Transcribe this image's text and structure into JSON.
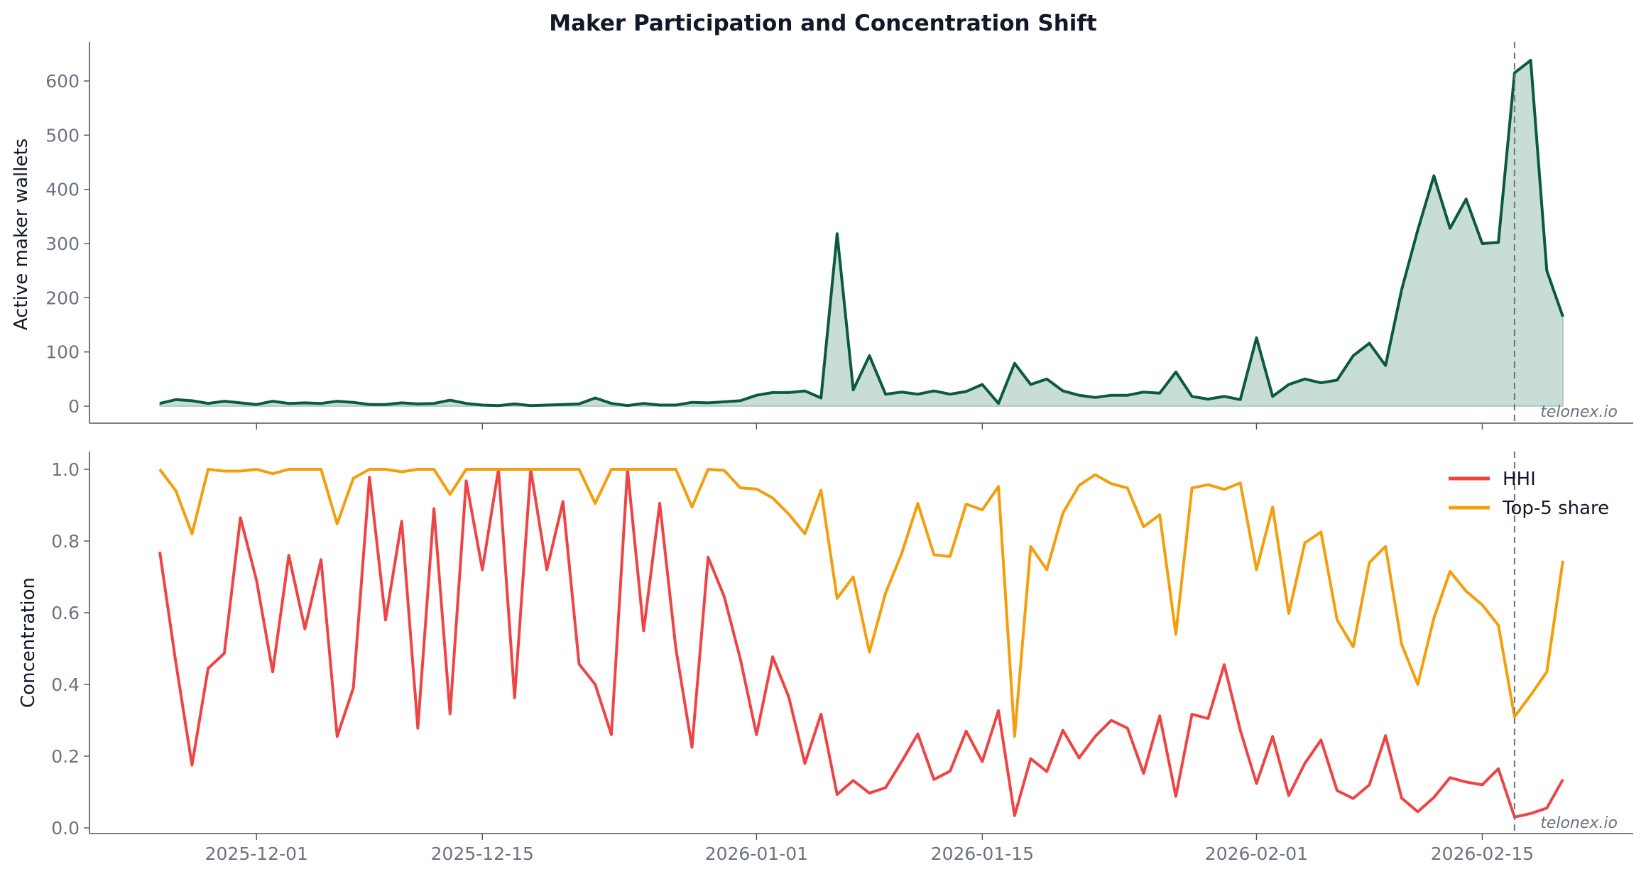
{
  "chart_data": [
    {
      "type": "area",
      "title": "Maker Participation and Concentration Shift",
      "ylabel": "Active maker wallets",
      "xlabel": "",
      "ylim": [
        -30,
        670
      ],
      "yticks": [
        0,
        100,
        200,
        300,
        400,
        500,
        600
      ],
      "marker_date": "2026-02-17",
      "watermark": "telonex.io",
      "colors": {
        "line": "#0b5a3f",
        "fill": "#c8ddd5"
      },
      "series": [
        {
          "values": [
            5,
            12,
            10,
            5,
            9,
            6,
            3,
            9,
            5,
            6,
            5,
            9,
            7,
            3,
            3,
            6,
            4,
            5,
            11,
            5,
            2,
            1,
            4,
            1,
            2,
            3,
            4,
            15,
            5,
            1,
            5,
            2,
            2,
            7,
            6,
            8,
            10,
            20,
            25,
            25,
            28,
            15,
            318,
            30,
            93,
            22,
            26,
            22,
            28,
            22,
            27,
            40,
            5,
            79,
            40,
            50,
            28,
            20,
            16,
            20,
            20,
            26,
            24,
            63,
            18,
            13,
            18,
            12,
            126,
            18,
            40,
            50,
            43,
            48,
            93,
            116,
            75,
            215,
            325,
            425,
            328,
            382,
            300,
            302,
            615,
            638,
            250,
            165
          ]
        }
      ]
    },
    {
      "type": "line",
      "ylabel": "Concentration",
      "xlabel": "",
      "ylim": [
        -0.02,
        1.05
      ],
      "yticks": [
        "0.0",
        "0.2",
        "0.4",
        "0.6",
        "0.8",
        "1.0"
      ],
      "xticks": [
        "2025-12-01",
        "2025-12-15",
        "2026-01-01",
        "2026-01-15",
        "2026-02-01",
        "2026-02-15"
      ],
      "marker_date": "2026-02-17",
      "watermark": "telonex.io",
      "legend_position": "top-right",
      "series": [
        {
          "name": "HHI",
          "color": "#ef4444",
          "values": [
            0.77,
            0.46,
            0.175,
            0.445,
            0.487,
            0.865,
            0.69,
            0.435,
            0.76,
            0.555,
            0.748,
            0.255,
            0.39,
            0.978,
            0.58,
            0.855,
            0.278,
            0.89,
            0.318,
            0.968,
            0.72,
            1.0,
            0.363,
            1.0,
            0.72,
            0.91,
            0.457,
            0.4,
            0.26,
            1.0,
            0.55,
            0.905,
            0.5,
            0.225,
            0.755,
            0.645,
            0.47,
            0.26,
            0.477,
            0.365,
            0.18,
            0.317,
            0.093,
            0.132,
            0.097,
            0.112,
            0.185,
            0.262,
            0.135,
            0.158,
            0.27,
            0.185,
            0.327,
            0.034,
            0.193,
            0.157,
            0.272,
            0.195,
            0.255,
            0.3,
            0.278,
            0.152,
            0.312,
            0.088,
            0.317,
            0.305,
            0.455,
            0.272,
            0.124,
            0.255,
            0.09,
            0.18,
            0.245,
            0.104,
            0.082,
            0.12,
            0.257,
            0.083,
            0.045,
            0.085,
            0.14,
            0.128,
            0.12,
            0.165,
            0.03,
            0.04,
            0.055,
            0.135
          ]
        },
        {
          "name": "Top-5 share",
          "color": "#f59e0b",
          "values": [
            1.0,
            0.94,
            0.82,
            1.0,
            0.995,
            0.995,
            1.0,
            0.988,
            1.0,
            1.0,
            1.0,
            0.848,
            0.975,
            1.0,
            1.0,
            0.993,
            1.0,
            1.0,
            0.93,
            1.0,
            1.0,
            1.0,
            1.0,
            1.0,
            1.0,
            1.0,
            1.0,
            0.905,
            1.0,
            1.0,
            1.0,
            1.0,
            1.0,
            0.895,
            1.0,
            0.997,
            0.948,
            0.945,
            0.92,
            0.875,
            0.82,
            0.942,
            0.64,
            0.7,
            0.49,
            0.655,
            0.765,
            0.905,
            0.762,
            0.757,
            0.903,
            0.887,
            0.952,
            0.255,
            0.785,
            0.72,
            0.878,
            0.955,
            0.985,
            0.96,
            0.948,
            0.84,
            0.873,
            0.54,
            0.948,
            0.957,
            0.944,
            0.962,
            0.72,
            0.895,
            0.598,
            0.795,
            0.825,
            0.58,
            0.505,
            0.74,
            0.785,
            0.512,
            0.4,
            0.585,
            0.715,
            0.66,
            0.622,
            0.565,
            0.31,
            0.37,
            0.435,
            0.745
          ]
        }
      ]
    }
  ],
  "x_dates": [
    "2025-11-25",
    "2025-11-26",
    "2025-11-27",
    "2025-11-28",
    "2025-11-29",
    "2025-11-30",
    "2025-12-01",
    "2025-12-02",
    "2025-12-03",
    "2025-12-04",
    "2025-12-05",
    "2025-12-06",
    "2025-12-07",
    "2025-12-08",
    "2025-12-09",
    "2025-12-10",
    "2025-12-11",
    "2025-12-12",
    "2025-12-13",
    "2025-12-14",
    "2025-12-15",
    "2025-12-16",
    "2025-12-17",
    "2025-12-18",
    "2025-12-19",
    "2025-12-20",
    "2025-12-21",
    "2025-12-22",
    "2025-12-23",
    "2025-12-24",
    "2025-12-25",
    "2025-12-26",
    "2025-12-27",
    "2025-12-28",
    "2025-12-29",
    "2025-12-30",
    "2025-12-31",
    "2026-01-01",
    "2026-01-02",
    "2026-01-03",
    "2026-01-04",
    "2026-01-05",
    "2026-01-06",
    "2026-01-07",
    "2026-01-08",
    "2026-01-09",
    "2026-01-10",
    "2026-01-11",
    "2026-01-12",
    "2026-01-13",
    "2026-01-14",
    "2026-01-15",
    "2026-01-16",
    "2026-01-17",
    "2026-01-18",
    "2026-01-19",
    "2026-01-20",
    "2026-01-21",
    "2026-01-22",
    "2026-01-23",
    "2026-01-24",
    "2026-01-25",
    "2026-01-26",
    "2026-01-27",
    "2026-01-28",
    "2026-01-29",
    "2026-01-30",
    "2026-01-31",
    "2026-02-01",
    "2026-02-02",
    "2026-02-03",
    "2026-02-04",
    "2026-02-05",
    "2026-02-06",
    "2026-02-07",
    "2026-02-08",
    "2026-02-09",
    "2026-02-10",
    "2026-02-11",
    "2026-02-12",
    "2026-02-13",
    "2026-02-14",
    "2026-02-15",
    "2026-02-16",
    "2026-02-17",
    "2026-02-18",
    "2026-02-19",
    "2026-02-20"
  ]
}
